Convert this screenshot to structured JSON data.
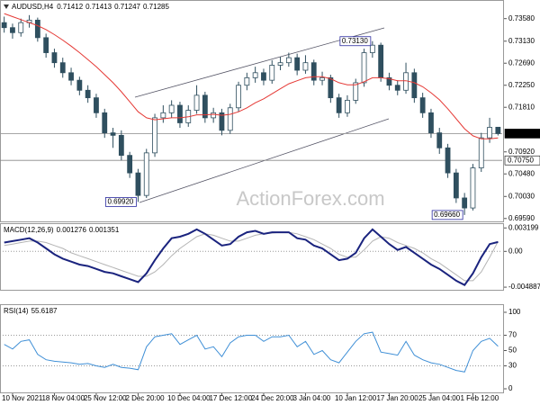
{
  "chart_data": [
    {
      "type": "candlestick",
      "title": "AUDUSD,H4",
      "watermark": "ActionForex.com",
      "categories": [
        null,
        "10 Nov 2021",
        null,
        null,
        null,
        null,
        "18 Nov 04:00",
        null,
        null,
        null,
        null,
        "25 Nov 12:00",
        null,
        null,
        null,
        null,
        "2 Dec 20:00",
        null,
        null,
        null,
        null,
        "10 Dec 04:00",
        null,
        null,
        null,
        null,
        "17 Dec 12:00",
        null,
        null,
        null,
        null,
        "24 Dec 20:00",
        null,
        null,
        null,
        null,
        "3 Jan 04:00",
        null,
        null,
        null,
        null,
        "10 Jan 12:00",
        null,
        null,
        null,
        null,
        "17 Jan 20:00",
        null,
        null,
        null,
        null,
        "25 Jan 04:00",
        null,
        null,
        null,
        null,
        "1 Feb 12:00",
        null,
        null,
        null
      ],
      "open": [
        0.735,
        0.734,
        0.733,
        0.735,
        0.7355,
        0.732,
        0.729,
        0.727,
        0.725,
        0.7235,
        0.7215,
        0.72,
        0.717,
        0.713,
        0.7125,
        0.7085,
        0.705,
        0.7005,
        0.709,
        0.716,
        0.717,
        0.7185,
        0.715,
        0.7175,
        0.7205,
        0.716,
        0.717,
        0.7135,
        0.718,
        0.7225,
        0.724,
        0.725,
        0.7235,
        0.7265,
        0.727,
        0.728,
        0.7255,
        0.727,
        0.7235,
        0.724,
        0.72,
        0.717,
        0.7195,
        0.723,
        0.729,
        0.7305,
        0.724,
        0.7225,
        0.7215,
        0.725,
        0.72,
        0.717,
        0.713,
        0.71,
        0.705,
        0.7,
        0.698,
        0.706,
        0.712,
        0.71412
      ],
      "high": [
        0.7362,
        0.7348,
        0.7358,
        0.7365,
        0.736,
        0.7328,
        0.7298,
        0.728,
        0.726,
        0.7242,
        0.7225,
        0.7208,
        0.7178,
        0.714,
        0.7135,
        0.7092,
        0.7058,
        0.7098,
        0.7168,
        0.7185,
        0.7195,
        0.7192,
        0.7185,
        0.7225,
        0.7212,
        0.718,
        0.7178,
        0.7188,
        0.7232,
        0.725,
        0.7262,
        0.7258,
        0.7275,
        0.7282,
        0.729,
        0.7288,
        0.7285,
        0.7276,
        0.7252,
        0.7246,
        0.7208,
        0.7205,
        0.7238,
        0.7298,
        0.7313,
        0.731,
        0.725,
        0.7235,
        0.727,
        0.7258,
        0.721,
        0.7178,
        0.714,
        0.7108,
        0.7058,
        0.701,
        0.7068,
        0.713,
        0.716,
        0.71413
      ],
      "low": [
        0.733,
        0.7318,
        0.7322,
        0.734,
        0.7312,
        0.728,
        0.726,
        0.724,
        0.7225,
        0.7205,
        0.719,
        0.716,
        0.712,
        0.71,
        0.7075,
        0.704,
        0.6992,
        0.7,
        0.7082,
        0.715,
        0.716,
        0.714,
        0.7142,
        0.7168,
        0.715,
        0.715,
        0.7125,
        0.7128,
        0.7172,
        0.7215,
        0.723,
        0.7225,
        0.7228,
        0.7255,
        0.7262,
        0.7245,
        0.7248,
        0.7225,
        0.7225,
        0.719,
        0.716,
        0.7162,
        0.7188,
        0.7222,
        0.728,
        0.7232,
        0.7215,
        0.7205,
        0.7208,
        0.719,
        0.716,
        0.712,
        0.7088,
        0.704,
        0.699,
        0.6966,
        0.6975,
        0.7052,
        0.711,
        0.71247
      ],
      "close": [
        0.734,
        0.733,
        0.735,
        0.7355,
        0.732,
        0.729,
        0.727,
        0.725,
        0.7235,
        0.7215,
        0.72,
        0.717,
        0.713,
        0.7125,
        0.7085,
        0.705,
        0.7005,
        0.709,
        0.716,
        0.717,
        0.7185,
        0.715,
        0.7175,
        0.7205,
        0.716,
        0.717,
        0.7135,
        0.718,
        0.7225,
        0.724,
        0.725,
        0.7235,
        0.7265,
        0.727,
        0.728,
        0.7255,
        0.727,
        0.7235,
        0.724,
        0.72,
        0.717,
        0.7195,
        0.723,
        0.729,
        0.7305,
        0.724,
        0.7225,
        0.7215,
        0.725,
        0.72,
        0.717,
        0.713,
        0.71,
        0.705,
        0.7,
        0.698,
        0.706,
        0.712,
        0.7141,
        0.71285
      ],
      "up_color": "#ffffff",
      "down_color": "#2f4f5f",
      "candle_color": "#2f4f5f",
      "overlay": {
        "color": "#e53935",
        "values": [
          0.7368,
          0.7362,
          0.7356,
          0.735,
          0.7344,
          0.7336,
          0.7326,
          0.7315,
          0.7303,
          0.729,
          0.7276,
          0.7262,
          0.7246,
          0.723,
          0.7212,
          0.7192,
          0.7172,
          0.716,
          0.7156,
          0.7158,
          0.716,
          0.716,
          0.7162,
          0.7166,
          0.7166,
          0.7167,
          0.7165,
          0.7167,
          0.7172,
          0.718,
          0.719,
          0.7198,
          0.7208,
          0.7218,
          0.7228,
          0.7234,
          0.724,
          0.7242,
          0.7242,
          0.7238,
          0.723,
          0.7226,
          0.7226,
          0.7232,
          0.724,
          0.724,
          0.7238,
          0.7234,
          0.7234,
          0.723,
          0.7222,
          0.721,
          0.7196,
          0.7178,
          0.7158,
          0.7138,
          0.7124,
          0.7118,
          0.7118,
          0.712
        ]
      },
      "ylim": [
        0.6955,
        0.7388
      ],
      "yticks": [
        {
          "value": 0.7358,
          "label": "0.73580"
        },
        {
          "value": 0.7313,
          "label": "0.73130"
        },
        {
          "value": 0.7269,
          "label": "0.72690"
        },
        {
          "value": 0.7225,
          "label": "0.72250"
        },
        {
          "value": 0.7181,
          "label": "0.71810"
        },
        {
          "value": 0.7092,
          "label": "0.70920"
        },
        {
          "value": 0.7048,
          "label": "0.70480"
        },
        {
          "value": 0.7003,
          "label": "0.70030"
        },
        {
          "value": 0.6959,
          "label": "0.69590"
        }
      ],
      "price_line": {
        "value": 0.71285,
        "label": "0.71285"
      },
      "level_line": {
        "value": 0.7075,
        "label": "0.70750"
      },
      "annotations": [
        {
          "value": 0.7313,
          "label": "0.73130"
        },
        {
          "value": 0.6992,
          "label": "0.69920"
        },
        {
          "value": 0.6966,
          "label": "0.69660"
        }
      ]
    },
    {
      "type": "macd",
      "title": "MACD(12,26,9)",
      "series": [
        {
          "color": "#1a237e",
          "values": [
            0.0012,
            0.0014,
            0.0016,
            0.0018,
            0.0012,
            0.0004,
            -0.0004,
            -0.001,
            -0.0014,
            -0.0018,
            -0.002,
            -0.0024,
            -0.0028,
            -0.003,
            -0.0034,
            -0.0038,
            -0.0042,
            -0.003,
            -0.0012,
            0.0004,
            0.0018,
            0.002,
            0.0024,
            0.003,
            0.0024,
            0.0016,
            0.0008,
            0.001,
            0.002,
            0.0026,
            0.0028,
            0.0024,
            0.0026,
            0.0026,
            0.0026,
            0.0018,
            0.0016,
            0.0008,
            0.0004,
            -0.0004,
            -0.0012,
            -0.001,
            -0.0002,
            0.0018,
            0.003,
            0.002,
            0.001,
            0.0002,
            0.0006,
            -0.0002,
            -0.001,
            -0.0018,
            -0.0024,
            -0.0032,
            -0.004,
            -0.0046,
            -0.003,
            -0.0008,
            0.001,
            0.001276
          ]
        },
        {
          "color": "#b4b4b4",
          "values": [
            0.0008,
            0.001,
            0.0012,
            0.0014,
            0.0014,
            0.0012,
            0.0008,
            0.0004,
            -0.0002,
            -0.0006,
            -0.001,
            -0.0014,
            -0.0018,
            -0.0022,
            -0.0026,
            -0.003,
            -0.0034,
            -0.0034,
            -0.0028,
            -0.0018,
            -0.0006,
            0.0004,
            0.0012,
            0.002,
            0.0024,
            0.0022,
            0.0018,
            0.0014,
            0.0014,
            0.0018,
            0.0022,
            0.0024,
            0.0025,
            0.0026,
            0.0026,
            0.0024,
            0.002,
            0.0016,
            0.001,
            0.0004,
            -0.0004,
            -0.0008,
            -0.0008,
            0.0002,
            0.0014,
            0.002,
            0.0018,
            0.0012,
            0.0008,
            0.0004,
            -0.0002,
            -0.001,
            -0.0016,
            -0.0024,
            -0.0032,
            -0.004,
            -0.004,
            -0.0028,
            -0.0008,
            0.001351
          ]
        }
      ],
      "ylim": [
        -0.005,
        0.0036
      ],
      "yticks": [
        0.003199,
        {
          "value": 0,
          "label": "0.00"
        },
        -0.004887
      ]
    },
    {
      "type": "line",
      "title": "RSI(14)",
      "color": "#3f8fd6",
      "values": [
        58,
        52,
        62,
        64,
        45,
        38,
        36,
        35,
        34,
        32,
        33,
        30,
        28,
        32,
        28,
        27,
        25,
        55,
        68,
        70,
        72,
        58,
        64,
        70,
        52,
        55,
        42,
        60,
        68,
        70,
        70,
        62,
        68,
        68,
        70,
        55,
        62,
        45,
        50,
        38,
        34,
        48,
        62,
        72,
        74,
        48,
        46,
        44,
        62,
        44,
        38,
        34,
        32,
        28,
        24,
        22,
        50,
        62,
        66,
        55.6187
      ],
      "ylim": [
        0,
        100
      ],
      "yticks": [
        100,
        70,
        50,
        30,
        0
      ],
      "levels": [
        70,
        30
      ]
    }
  ]
}
